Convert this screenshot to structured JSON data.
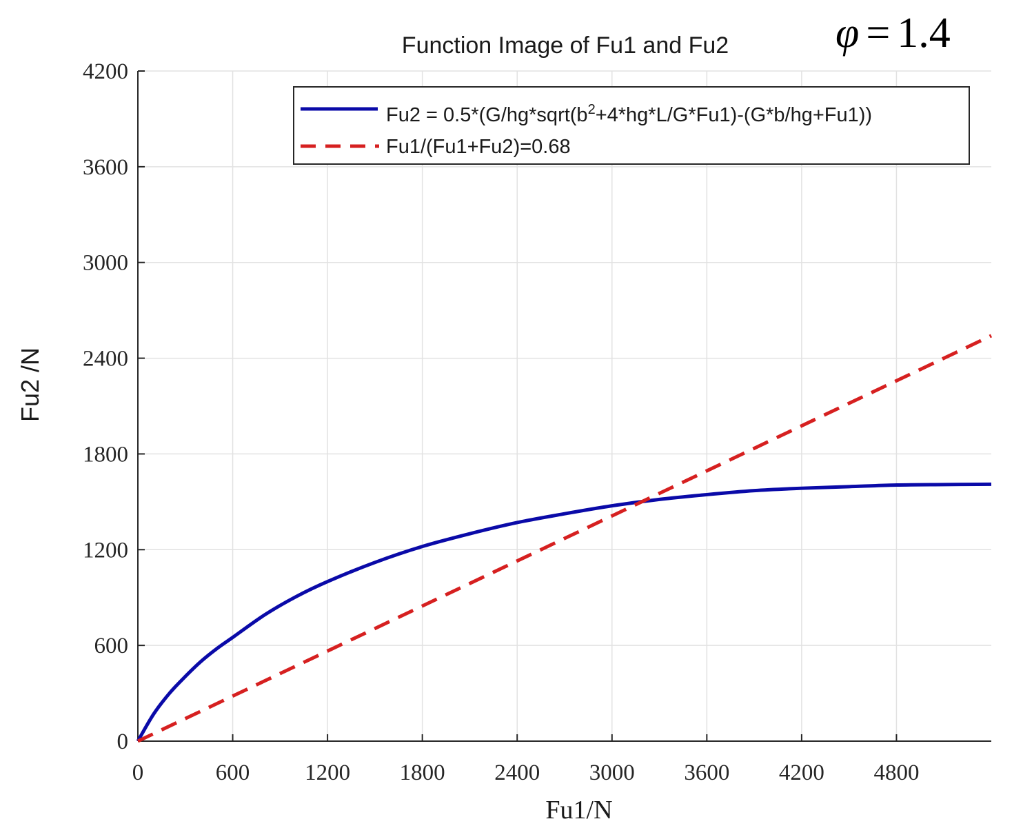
{
  "chart_data": {
    "type": "line",
    "title": "Function Image of Fu1 and Fu2",
    "annotation": {
      "symbol": "φ",
      "operator": "=",
      "value": "1.4"
    },
    "xlabel": "Fu1/N",
    "ylabel": "Fu2 /N",
    "xlim": [
      0,
      5400
    ],
    "ylim": [
      0,
      4200
    ],
    "xticks": [
      0,
      600,
      1200,
      1800,
      2400,
      3000,
      3600,
      4200,
      4800
    ],
    "yticks": [
      0,
      600,
      1200,
      1800,
      2400,
      3000,
      3600,
      4200
    ],
    "xtick_labels": [
      "0",
      "600",
      "1200",
      "1800",
      "2400",
      "3000",
      "3600",
      "4200",
      "4800"
    ],
    "ytick_labels": [
      "0",
      "600",
      "1200",
      "1800",
      "2400",
      "3000",
      "3600",
      "4200"
    ],
    "grid": true,
    "legend_position": "top-right",
    "series": [
      {
        "name": "Fu2 = 0.5*(G/hg*sqrt(b^2+4*hg*L/G*Fu1)-(G*b/hg+Fu1))",
        "legend_prefix": "Fu2 = 0.5*(G/hg*sqrt(b",
        "legend_sup": "2",
        "legend_suffix": "+4*hg*L/G*Fu1)-(G*b/hg+Fu1))",
        "color": "#0a0aa8",
        "style": "solid",
        "x": [
          0,
          100,
          200,
          300,
          400,
          500,
          600,
          800,
          1000,
          1200,
          1500,
          1800,
          2100,
          2400,
          2700,
          3000,
          3300,
          3600,
          3900,
          4200,
          4500,
          4800,
          5100,
          5400
        ],
        "y": [
          0,
          170,
          300,
          405,
          500,
          580,
          650,
          790,
          905,
          1000,
          1120,
          1220,
          1300,
          1370,
          1425,
          1475,
          1515,
          1545,
          1570,
          1585,
          1595,
          1605,
          1608,
          1610
        ]
      },
      {
        "name": "Fu1/(Fu1+Fu2)=0.68",
        "color": "#d62020",
        "style": "dashed",
        "x": [
          0,
          5400
        ],
        "y": [
          0,
          2541
        ]
      }
    ]
  }
}
